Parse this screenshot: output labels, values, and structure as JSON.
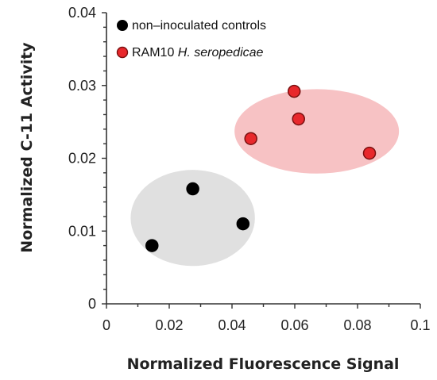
{
  "chart_data": {
    "type": "scatter",
    "title": "",
    "xlabel": "Normalized Fluorescence Signal",
    "ylabel": "Normalized C-11 Activity",
    "xlim": [
      0,
      0.1
    ],
    "ylim": [
      0,
      0.04
    ],
    "x_ticks": [
      "0",
      "0.02",
      "0.04",
      "0.06",
      "0.08",
      "0.1"
    ],
    "y_ticks": [
      "0",
      "0.01",
      "0.02",
      "0.03",
      "0.04"
    ],
    "grid": false,
    "legend_position": "top-left",
    "series": [
      {
        "name": "non–inoculated controls",
        "color": "#000000",
        "edge_color": "#000000",
        "points": [
          {
            "x": 0.0145,
            "y": 0.008
          },
          {
            "x": 0.0275,
            "y": 0.0158
          },
          {
            "x": 0.0435,
            "y": 0.011
          }
        ],
        "cluster_ellipse": {
          "cx": 0.0275,
          "cy": 0.0118,
          "rx": 0.0198,
          "ry": 0.0066,
          "color": "#e0e0e0"
        }
      },
      {
        "name_prefix": "RAM10 ",
        "name_italic": "H. seropedicae",
        "color": "#e8282c",
        "edge_color": "#7a1010",
        "points": [
          {
            "x": 0.046,
            "y": 0.0227
          },
          {
            "x": 0.0598,
            "y": 0.0292
          },
          {
            "x": 0.0612,
            "y": 0.0254
          },
          {
            "x": 0.0838,
            "y": 0.0207
          }
        ],
        "cluster_ellipse": {
          "cx": 0.067,
          "cy": 0.0237,
          "rx": 0.0262,
          "ry": 0.0058,
          "color": "#f7c2c4"
        }
      }
    ]
  }
}
